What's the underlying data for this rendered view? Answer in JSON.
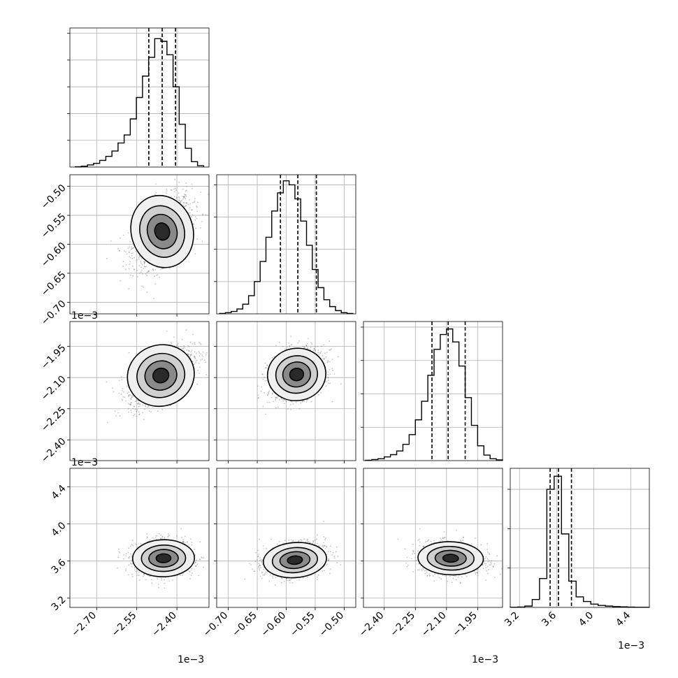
{
  "chart_data": {
    "type": "corner",
    "n_params": 4,
    "grid": true,
    "offset_text": "1e−3",
    "parameters": [
      {
        "ticks": [
          -2.7,
          -2.55,
          -2.4
        ],
        "tick_labels": [
          "−2.70",
          "−2.55",
          "−2.40"
        ],
        "range": [
          -2.8,
          -2.28
        ],
        "quantiles": [
          -2.505,
          -2.455,
          -2.405
        ]
      },
      {
        "ticks": [
          -0.7,
          -0.65,
          -0.6,
          -0.55,
          -0.5
        ],
        "tick_labels": [
          "−0.70",
          "−0.65",
          "−0.60",
          "−0.55",
          "−0.50"
        ],
        "range": [
          -0.72,
          -0.48
        ],
        "quantiles": [
          -0.61,
          -0.58,
          -0.548
        ]
      },
      {
        "ticks": [
          -2.4,
          -2.25,
          -2.1,
          -1.95
        ],
        "tick_labels": [
          "−2.40",
          "−2.25",
          "−2.10",
          "−1.95"
        ],
        "range": [
          -2.5,
          -1.83
        ],
        "quantiles": [
          -2.17,
          -2.092,
          -2.01
        ]
      },
      {
        "ticks": [
          3.2,
          3.6,
          4.0,
          4.4
        ],
        "tick_labels": [
          "3.2",
          "3.6",
          "4.0",
          "4.4"
        ],
        "range": [
          3.1,
          4.6
        ],
        "quantiles": [
          3.53,
          3.62,
          3.76
        ]
      }
    ],
    "marginals": [
      {
        "bin_range": [
          -2.78,
          -2.3
        ],
        "counts": [
          1,
          3,
          8,
          14,
          25,
          40,
          60,
          90,
          120,
          180,
          260,
          340,
          410,
          480,
          470,
          420,
          300,
          160,
          70,
          20,
          5
        ],
        "ylim": [
          0,
          520
        ],
        "yticks": [
          100,
          200,
          300,
          400,
          500
        ]
      },
      {
        "bin_range": [
          -0.715,
          -0.485
        ],
        "counts": [
          1,
          3,
          6,
          12,
          24,
          45,
          80,
          130,
          190,
          255,
          300,
          330,
          320,
          285,
          230,
          170,
          110,
          65,
          35,
          18,
          8,
          3,
          1
        ],
        "ylim": [
          0,
          345
        ],
        "yticks": [
          80,
          160,
          240,
          320
        ]
      },
      {
        "bin_range": [
          -2.49,
          -1.83
        ],
        "counts": [
          1,
          3,
          5,
          10,
          16,
          26,
          44,
          70,
          110,
          160,
          230,
          300,
          340,
          355,
          320,
          255,
          170,
          95,
          40,
          15,
          5,
          2
        ],
        "ylim": [
          0,
          375
        ],
        "yticks": [
          90,
          180,
          270,
          360
        ]
      },
      {
        "bin_range": [
          3.1,
          4.6
        ],
        "counts": [
          1,
          3,
          10,
          60,
          220,
          900,
          1000,
          560,
          200,
          80,
          45,
          25,
          15,
          10,
          6,
          4,
          2,
          1,
          1
        ],
        "ylim": [
          0,
          1060
        ],
        "yticks": [
          300,
          600,
          900
        ]
      }
    ],
    "pairs": [
      {
        "x": 0,
        "y": 1,
        "cx": -2.455,
        "cy": -0.578,
        "sx": 0.055,
        "sy": 0.03,
        "rho": 0.45
      },
      {
        "x": 0,
        "y": 2,
        "cx": -2.46,
        "cy": -2.09,
        "sx": 0.06,
        "sy": 0.07,
        "rho": 0.62
      },
      {
        "x": 1,
        "y": 2,
        "cx": -0.582,
        "cy": -2.085,
        "sx": 0.024,
        "sy": 0.06,
        "rho": 0.28
      },
      {
        "x": 0,
        "y": 3,
        "cx": -2.45,
        "cy": 3.63,
        "sx": 0.055,
        "sy": 0.095,
        "rho": 0.05
      },
      {
        "x": 1,
        "y": 3,
        "cx": -0.585,
        "cy": 3.61,
        "sx": 0.026,
        "sy": 0.09,
        "rho": 0.25
      },
      {
        "x": 2,
        "y": 3,
        "cx": -2.08,
        "cy": 3.63,
        "sx": 0.075,
        "sy": 0.085,
        "rho": -0.1
      }
    ],
    "colors": {
      "axes": "#000000",
      "grid": "#b0b0b0",
      "points": "#555555",
      "density_dark": "#111111",
      "density_light": "#e6e6e6"
    }
  }
}
